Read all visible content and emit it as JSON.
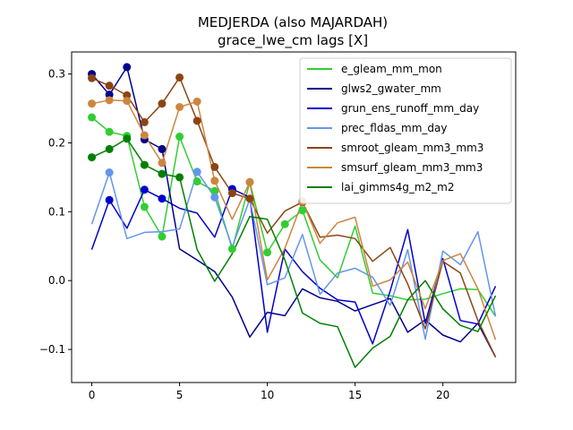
{
  "chart_data": {
    "type": "line",
    "title": "MEDJERDA (also MAJARDAH)",
    "subtitle": "grace_lwe_cm lags [X]",
    "xlabel": "",
    "ylabel": "",
    "xlim": [
      -1.15,
      24.15
    ],
    "ylim": [
      -0.148,
      0.332
    ],
    "x_ticks": [
      0,
      5,
      10,
      15,
      20
    ],
    "y_ticks": [
      -0.1,
      0.0,
      0.1,
      0.2,
      0.3
    ],
    "y_tick_labels": [
      "−0.1",
      "0.0",
      "0.1",
      "0.2",
      "0.3"
    ],
    "legend_position": "top-right",
    "x": [
      0,
      1,
      2,
      3,
      4,
      5,
      6,
      7,
      8,
      9,
      10,
      11,
      12,
      13,
      14,
      15,
      16,
      17,
      18,
      19,
      20,
      21,
      22,
      23
    ],
    "series": [
      {
        "name": "e_gleam_mm_mon",
        "color": "#32cd32",
        "values": [
          0.237,
          0.216,
          0.21,
          0.107,
          0.064,
          0.209,
          0.144,
          0.13,
          0.046,
          0.143,
          0.041,
          0.082,
          0.102,
          0.03,
          0.004,
          0.079,
          -0.018,
          -0.022,
          -0.028,
          -0.027,
          -0.019,
          -0.012,
          -0.013,
          -0.052
        ],
        "markers": [
          0,
          1,
          2,
          3,
          4,
          5,
          6,
          7,
          8,
          9,
          10,
          11,
          12
        ]
      },
      {
        "name": "glws2_gwater_mm",
        "color": "#00008b",
        "values": [
          0.3,
          0.27,
          0.31,
          0.205,
          0.191,
          0.046,
          0.03,
          0.013,
          -0.024,
          -0.082,
          -0.046,
          -0.051,
          -0.012,
          -0.025,
          -0.03,
          -0.044,
          -0.035,
          -0.026,
          -0.075,
          -0.057,
          -0.079,
          -0.089,
          -0.062,
          -0.111
        ],
        "markers": [
          0,
          1,
          2,
          3,
          4
        ]
      },
      {
        "name": "grun_ens_runoff_mm_day",
        "color": "#0000cd",
        "values": [
          0.045,
          0.117,
          0.076,
          0.132,
          0.119,
          0.105,
          0.098,
          0.063,
          0.133,
          0.121,
          -0.075,
          0.046,
          0.013,
          -0.011,
          -0.028,
          -0.031,
          -0.092,
          -0.015,
          0.074,
          -0.062,
          0.032,
          -0.058,
          -0.063,
          -0.008
        ],
        "markers": [
          1,
          3,
          4,
          8
        ]
      },
      {
        "name": "prec_fldas_mm_day",
        "color": "#6495ed",
        "values": [
          0.082,
          0.157,
          0.061,
          0.07,
          0.071,
          0.075,
          0.158,
          0.121,
          0.049,
          0.118,
          -0.006,
          0.004,
          0.067,
          -0.02,
          0.011,
          0.018,
          0.005,
          -0.036,
          0.045,
          -0.085,
          0.043,
          0.023,
          0.071,
          -0.052
        ],
        "markers": [
          1,
          6,
          7
        ]
      },
      {
        "name": "smroot_gleam_mm3_mm3",
        "color": "#8b4513",
        "values": [
          0.294,
          0.283,
          0.269,
          0.23,
          0.257,
          0.295,
          0.232,
          0.165,
          0.127,
          0.119,
          0.069,
          0.101,
          0.114,
          0.063,
          0.066,
          0.061,
          0.028,
          0.048,
          -0.005,
          -0.07,
          0.028,
          0.011,
          -0.058,
          -0.111
        ],
        "markers": [
          0,
          1,
          2,
          3,
          4,
          5,
          6,
          7,
          8,
          9,
          12
        ]
      },
      {
        "name": "smsurf_gleam_mm3_mm3",
        "color": "#cd853f",
        "values": [
          0.257,
          0.262,
          0.261,
          0.211,
          0.171,
          0.252,
          0.26,
          0.145,
          0.089,
          0.143,
          0.001,
          0.047,
          0.115,
          0.054,
          0.084,
          0.092,
          -0.008,
          0.001,
          0.027,
          -0.041,
          0.029,
          0.039,
          -0.012,
          -0.086
        ],
        "markers": [
          0,
          1,
          2,
          3,
          4,
          5,
          6,
          7,
          9,
          12
        ]
      },
      {
        "name": "lai_gimms4g_m2_m2",
        "color": "#008000",
        "values": [
          0.179,
          0.191,
          0.206,
          0.168,
          0.155,
          0.15,
          0.045,
          -0.001,
          0.039,
          0.093,
          0.089,
          0.03,
          -0.047,
          -0.062,
          -0.067,
          -0.126,
          -0.098,
          -0.081,
          -0.028,
          0.0,
          -0.041,
          -0.065,
          -0.074,
          -0.022
        ],
        "markers": [
          0,
          1,
          2,
          3,
          4,
          5
        ]
      }
    ]
  }
}
